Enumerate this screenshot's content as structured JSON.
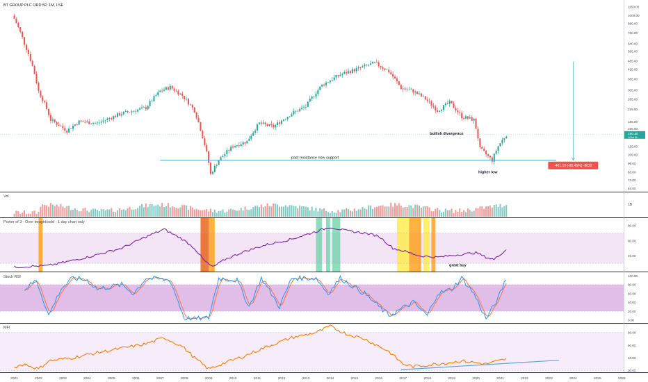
{
  "header": {
    "symbol_line": "BT GROUP PLC ORD 5P, 1M, LSE"
  },
  "colors": {
    "up": "#26a69a",
    "down": "#ef5350",
    "up_vol": "#80cbc4",
    "down_vol": "#f19a99",
    "rsi_line": "#7b1fa2",
    "rsi_band": "#f3e5f5",
    "stoch_k": "#2196f3",
    "stoch_d": "#ff7043",
    "stoch_band": "#e1bee7",
    "mfi_line": "#f57c00",
    "mfi_band": "#f7ecfa",
    "support": "#5ba7d4",
    "measure": "#5bb8c9",
    "last_price_bg": "#26a69a",
    "measure_bg": "#ef5350",
    "hl_orange": "#ff9800",
    "hl_red": "#e65100",
    "hl_green": "#69d1a6",
    "hl_yellow": "#ffeb3b"
  },
  "price_axis": {
    "ticks": [
      "1150.00",
      "1000.00",
      "880.00",
      "760.00",
      "640.00",
      "565.00",
      "485.00",
      "425.00",
      "365.00",
      "305.00",
      "265.00",
      "225.00",
      "185.00",
      "165.00",
      "125.00",
      "109.00",
      "95.00",
      "83.00",
      "73.00",
      "64.00"
    ],
    "last_price": "150.30",
    "last_price_sub": "104d 6h"
  },
  "annotations": {
    "support_label": "past resistance now support",
    "divergence_label": "bullish divergence",
    "higher_low_label": "higher low",
    "measure_label": "-401.10 (-85.45%) -8022",
    "great_buy_label": "great buy"
  },
  "panes": {
    "vol": {
      "title": "Vol",
      "ticks": [
        "1B"
      ]
    },
    "rsi": {
      "title": "Power of 3 - Over bought/sold - 1 day chart only",
      "ticks": [
        "80.00",
        "60.00",
        "40.00"
      ]
    },
    "stoch": {
      "title": "Stoch RSI",
      "ticks": [
        "100.00",
        "80.00",
        "60.00",
        "40.00",
        "20.00",
        "0.00"
      ]
    },
    "mfi": {
      "title": "MFI",
      "ticks": [
        "80.00",
        "60.00",
        "40.00",
        "20.00"
      ]
    }
  },
  "time_axis": {
    "labels": [
      "2001",
      "2002",
      "2003",
      "2004",
      "2005",
      "2006",
      "2007",
      "2008",
      "2009",
      "2010",
      "2011",
      "2012",
      "2013",
      "2014",
      "2015",
      "2016",
      "2017",
      "2018",
      "2019",
      "2020",
      "2021",
      "2022",
      "2023",
      "2024",
      "2025",
      "2026"
    ]
  },
  "chart_data": {
    "type": "candlestick",
    "title": "BT GROUP PLC ORD 5P, 1M, LSE",
    "interval": "1M",
    "y_scale": "log",
    "ylim": [
      62,
      1250
    ],
    "x_range": [
      "2001-01",
      "2026-06"
    ],
    "price_keypoints": [
      {
        "t": "2001-01",
        "close": 950
      },
      {
        "t": "2001-06",
        "close": 640
      },
      {
        "t": "2002-01",
        "close": 300
      },
      {
        "t": "2002-07",
        "close": 190
      },
      {
        "t": "2003-03",
        "close": 160
      },
      {
        "t": "2003-09",
        "close": 185
      },
      {
        "t": "2004-06",
        "close": 180
      },
      {
        "t": "2005-06",
        "close": 210
      },
      {
        "t": "2006-06",
        "close": 230
      },
      {
        "t": "2007-01",
        "close": 300
      },
      {
        "t": "2007-06",
        "close": 320
      },
      {
        "t": "2007-12",
        "close": 280
      },
      {
        "t": "2008-06",
        "close": 220
      },
      {
        "t": "2008-10",
        "close": 145
      },
      {
        "t": "2009-02",
        "close": 80
      },
      {
        "t": "2009-06",
        "close": 100
      },
      {
        "t": "2010-01",
        "close": 125
      },
      {
        "t": "2010-08",
        "close": 135
      },
      {
        "t": "2011-02",
        "close": 180
      },
      {
        "t": "2011-09",
        "close": 170
      },
      {
        "t": "2012-06",
        "close": 210
      },
      {
        "t": "2013-01",
        "close": 235
      },
      {
        "t": "2013-09",
        "close": 330
      },
      {
        "t": "2014-06",
        "close": 390
      },
      {
        "t": "2015-03",
        "close": 430
      },
      {
        "t": "2015-11",
        "close": 470
      },
      {
        "t": "2016-06",
        "close": 410
      },
      {
        "t": "2016-12",
        "close": 315
      },
      {
        "t": "2017-06",
        "close": 300
      },
      {
        "t": "2017-12",
        "close": 265
      },
      {
        "t": "2018-06",
        "close": 220
      },
      {
        "t": "2018-12",
        "close": 250
      },
      {
        "t": "2019-06",
        "close": 200
      },
      {
        "t": "2019-12",
        "close": 190
      },
      {
        "t": "2020-03",
        "close": 120
      },
      {
        "t": "2020-09",
        "close": 100
      },
      {
        "t": "2020-12",
        "close": 125
      },
      {
        "t": "2021-04",
        "close": 150
      }
    ],
    "support_level": 100,
    "measure": {
      "change": -401.1,
      "change_pct": -85.45,
      "ticks": -8022
    },
    "volume_scale_label": "1B",
    "rsi": {
      "ylim": [
        20,
        88
      ],
      "band": [
        30,
        70
      ],
      "keypoints": [
        {
          "t": "2001-01",
          "v": 25
        },
        {
          "t": "2002-06",
          "v": 27
        },
        {
          "t": "2004-01",
          "v": 38
        },
        {
          "t": "2005-06",
          "v": 50
        },
        {
          "t": "2006-06",
          "v": 65
        },
        {
          "t": "2007-03",
          "v": 75
        },
        {
          "t": "2007-12",
          "v": 62
        },
        {
          "t": "2008-06",
          "v": 50
        },
        {
          "t": "2008-11",
          "v": 33
        },
        {
          "t": "2009-03",
          "v": 25
        },
        {
          "t": "2009-09",
          "v": 35
        },
        {
          "t": "2010-06",
          "v": 45
        },
        {
          "t": "2011-06",
          "v": 55
        },
        {
          "t": "2012-06",
          "v": 62
        },
        {
          "t": "2013-06",
          "v": 72
        },
        {
          "t": "2014-01",
          "v": 78
        },
        {
          "t": "2014-09",
          "v": 73
        },
        {
          "t": "2015-06",
          "v": 70
        },
        {
          "t": "2016-01",
          "v": 66
        },
        {
          "t": "2016-08",
          "v": 50
        },
        {
          "t": "2017-03",
          "v": 45
        },
        {
          "t": "2017-09",
          "v": 40
        },
        {
          "t": "2018-06",
          "v": 38
        },
        {
          "t": "2019-06",
          "v": 42
        },
        {
          "t": "2020-01",
          "v": 44
        },
        {
          "t": "2020-06",
          "v": 38
        },
        {
          "t": "2020-10",
          "v": 35
        },
        {
          "t": "2021-01",
          "v": 42
        },
        {
          "t": "2021-04",
          "v": 48
        }
      ],
      "highlights": [
        {
          "from": "2002-01",
          "to": "2002-03",
          "color": "orange"
        },
        {
          "from": "2008-09",
          "to": "2009-01",
          "color": "red"
        },
        {
          "from": "2009-01",
          "to": "2009-04",
          "color": "orange"
        },
        {
          "from": "2013-06",
          "to": "2013-09",
          "color": "green"
        },
        {
          "from": "2013-11",
          "to": "2014-01",
          "color": "green"
        },
        {
          "from": "2014-02",
          "to": "2014-06",
          "color": "green"
        },
        {
          "from": "2016-10",
          "to": "2017-04",
          "color": "yellow"
        },
        {
          "from": "2017-04",
          "to": "2017-10",
          "color": "orange"
        },
        {
          "from": "2017-11",
          "to": "2018-02",
          "color": "yellow"
        },
        {
          "from": "2018-03",
          "to": "2018-05",
          "color": "orange"
        }
      ]
    },
    "stoch_rsi": {
      "ylim": [
        -5,
        105
      ],
      "band": [
        20,
        80
      ],
      "keypoints_k": [
        {
          "t": "2001-06",
          "v": 70
        },
        {
          "t": "2001-12",
          "v": 90
        },
        {
          "t": "2002-06",
          "v": 10
        },
        {
          "t": "2002-12",
          "v": 70
        },
        {
          "t": "2003-06",
          "v": 95
        },
        {
          "t": "2004-01",
          "v": 90
        },
        {
          "t": "2004-06",
          "v": 70
        },
        {
          "t": "2005-06",
          "v": 80
        },
        {
          "t": "2005-12",
          "v": 60
        },
        {
          "t": "2006-06",
          "v": 95
        },
        {
          "t": "2007-06",
          "v": 90
        },
        {
          "t": "2008-01",
          "v": 5
        },
        {
          "t": "2008-06",
          "v": 2
        },
        {
          "t": "2009-01",
          "v": 5
        },
        {
          "t": "2009-06",
          "v": 95
        },
        {
          "t": "2010-03",
          "v": 90
        },
        {
          "t": "2010-09",
          "v": 30
        },
        {
          "t": "2011-03",
          "v": 95
        },
        {
          "t": "2011-12",
          "v": 30
        },
        {
          "t": "2012-06",
          "v": 95
        },
        {
          "t": "2013-06",
          "v": 95
        },
        {
          "t": "2013-12",
          "v": 60
        },
        {
          "t": "2014-06",
          "v": 95
        },
        {
          "t": "2015-06",
          "v": 60
        },
        {
          "t": "2016-06",
          "v": 10
        },
        {
          "t": "2017-06",
          "v": 40
        },
        {
          "t": "2018-01",
          "v": 10
        },
        {
          "t": "2018-06",
          "v": 60
        },
        {
          "t": "2019-01",
          "v": 70
        },
        {
          "t": "2019-06",
          "v": 95
        },
        {
          "t": "2019-12",
          "v": 60
        },
        {
          "t": "2020-06",
          "v": 2
        },
        {
          "t": "2020-12",
          "v": 50
        },
        {
          "t": "2021-04",
          "v": 95
        }
      ]
    },
    "mfi": {
      "ylim": [
        18,
        92
      ],
      "band": [
        20,
        80
      ],
      "keypoints": [
        {
          "t": "2001-01",
          "v": 25
        },
        {
          "t": "2001-06",
          "v": 30
        },
        {
          "t": "2002-01",
          "v": 22
        },
        {
          "t": "2002-06",
          "v": 35
        },
        {
          "t": "2003-06",
          "v": 40
        },
        {
          "t": "2004-06",
          "v": 48
        },
        {
          "t": "2005-06",
          "v": 55
        },
        {
          "t": "2006-06",
          "v": 62
        },
        {
          "t": "2007-03",
          "v": 72
        },
        {
          "t": "2007-12",
          "v": 58
        },
        {
          "t": "2008-06",
          "v": 40
        },
        {
          "t": "2009-01",
          "v": 22
        },
        {
          "t": "2009-09",
          "v": 32
        },
        {
          "t": "2010-06",
          "v": 42
        },
        {
          "t": "2011-06",
          "v": 58
        },
        {
          "t": "2012-06",
          "v": 72
        },
        {
          "t": "2013-06",
          "v": 80
        },
        {
          "t": "2014-01",
          "v": 90
        },
        {
          "t": "2014-09",
          "v": 78
        },
        {
          "t": "2015-06",
          "v": 70
        },
        {
          "t": "2016-06",
          "v": 50
        },
        {
          "t": "2017-01",
          "v": 30
        },
        {
          "t": "2017-06",
          "v": 26
        },
        {
          "t": "2018-06",
          "v": 30
        },
        {
          "t": "2019-06",
          "v": 35
        },
        {
          "t": "2020-06",
          "v": 30
        },
        {
          "t": "2021-04",
          "v": 38
        }
      ],
      "trendline": [
        {
          "t": "2016-12",
          "v": 21
        },
        {
          "t": "2023-06",
          "v": 36
        }
      ]
    }
  }
}
